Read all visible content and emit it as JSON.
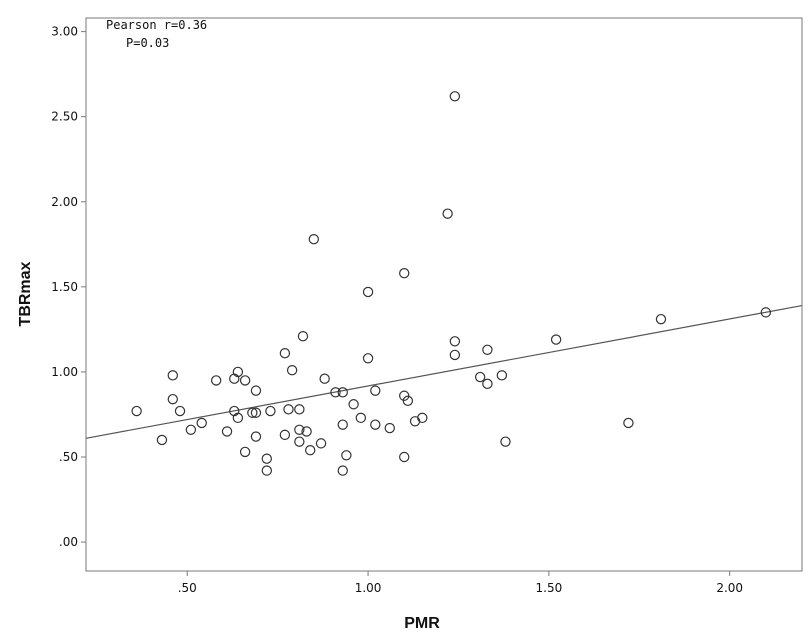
{
  "chart_data": {
    "type": "scatter",
    "xlabel": "PMR",
    "ylabel": "TBRmax",
    "xlim": [
      0.22,
      2.2
    ],
    "ylim": [
      -0.17,
      3.08
    ],
    "x_ticks": [
      0.5,
      1.0,
      1.5,
      2.0
    ],
    "x_tick_labels": [
      ".50",
      "1.00",
      "1.50",
      "2.00"
    ],
    "y_ticks": [
      0.0,
      0.5,
      1.0,
      1.5,
      2.0,
      2.5,
      3.0
    ],
    "y_tick_labels": [
      ".00",
      ".50",
      "1.00",
      "1.50",
      "2.00",
      "2.50",
      "3.00"
    ],
    "grid": false,
    "annotations": [
      "Pearson r=0.36",
      "P=0.03"
    ],
    "regression_line": {
      "x": [
        0.22,
        2.2
      ],
      "y": [
        0.61,
        1.39
      ]
    },
    "series": [
      {
        "points": [
          [
            0.36,
            0.77
          ],
          [
            0.43,
            0.6
          ],
          [
            0.46,
            0.84
          ],
          [
            0.46,
            0.98
          ],
          [
            0.48,
            0.77
          ],
          [
            0.51,
            0.66
          ],
          [
            0.54,
            0.7
          ],
          [
            0.58,
            0.95
          ],
          [
            0.61,
            0.65
          ],
          [
            0.63,
            0.96
          ],
          [
            0.63,
            0.77
          ],
          [
            0.64,
            0.73
          ],
          [
            0.64,
            1.0
          ],
          [
            0.66,
            0.95
          ],
          [
            0.66,
            0.53
          ],
          [
            0.68,
            0.76
          ],
          [
            0.69,
            0.76
          ],
          [
            0.69,
            0.89
          ],
          [
            0.69,
            0.62
          ],
          [
            0.72,
            0.49
          ],
          [
            0.72,
            0.42
          ],
          [
            0.73,
            0.77
          ],
          [
            0.77,
            1.11
          ],
          [
            0.77,
            0.63
          ],
          [
            0.78,
            0.78
          ],
          [
            0.79,
            1.01
          ],
          [
            0.81,
            0.78
          ],
          [
            0.81,
            0.66
          ],
          [
            0.81,
            0.59
          ],
          [
            0.82,
            1.21
          ],
          [
            0.83,
            0.65
          ],
          [
            0.84,
            0.54
          ],
          [
            0.85,
            1.78
          ],
          [
            0.87,
            0.58
          ],
          [
            0.88,
            0.96
          ],
          [
            0.91,
            0.88
          ],
          [
            0.93,
            0.88
          ],
          [
            0.93,
            0.69
          ],
          [
            0.93,
            0.42
          ],
          [
            0.94,
            0.51
          ],
          [
            0.96,
            0.81
          ],
          [
            0.98,
            0.73
          ],
          [
            1.0,
            1.47
          ],
          [
            1.0,
            1.08
          ],
          [
            1.02,
            0.89
          ],
          [
            1.02,
            0.69
          ],
          [
            1.06,
            0.67
          ],
          [
            1.1,
            1.58
          ],
          [
            1.1,
            0.86
          ],
          [
            1.1,
            0.5
          ],
          [
            1.11,
            0.83
          ],
          [
            1.13,
            0.71
          ],
          [
            1.15,
            0.73
          ],
          [
            1.22,
            1.93
          ],
          [
            1.24,
            2.62
          ],
          [
            1.24,
            1.18
          ],
          [
            1.24,
            1.1
          ],
          [
            1.31,
            0.97
          ],
          [
            1.33,
            1.13
          ],
          [
            1.33,
            0.93
          ],
          [
            1.37,
            0.98
          ],
          [
            1.38,
            0.59
          ],
          [
            1.52,
            1.19
          ],
          [
            1.72,
            0.7
          ],
          [
            1.81,
            1.31
          ],
          [
            2.1,
            1.35
          ]
        ]
      }
    ]
  }
}
